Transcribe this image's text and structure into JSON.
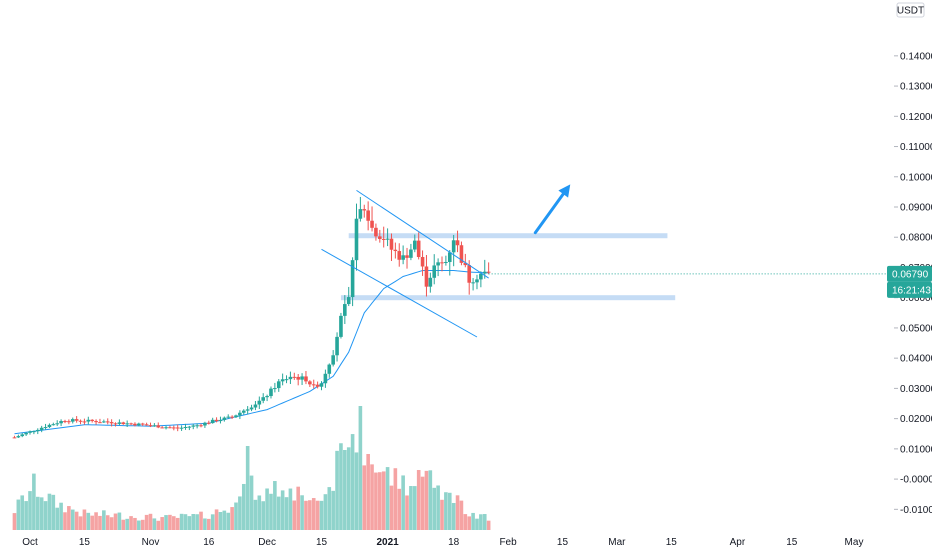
{
  "chart_data": {
    "type": "candlestick",
    "currency": "USDT",
    "y_axis": {
      "ticks": [
        "0.14000",
        "0.13000",
        "0.12000",
        "0.11000",
        "0.10000",
        "0.09000",
        "0.08000",
        "0.07000",
        "0.06000",
        "0.05000",
        "0.04000",
        "0.03000",
        "0.02000",
        "0.01000",
        "-0.00000",
        "-0.01000"
      ],
      "min": -0.0175,
      "max": 0.1545
    },
    "x_axis": {
      "ticks": [
        {
          "label": "Oct",
          "date": "2020-10-01"
        },
        {
          "label": "15",
          "date": "2020-10-15"
        },
        {
          "label": "Nov",
          "date": "2020-11-01"
        },
        {
          "label": "16",
          "date": "2020-11-16"
        },
        {
          "label": "Dec",
          "date": "2020-12-01"
        },
        {
          "label": "15",
          "date": "2020-12-15"
        },
        {
          "label": "2021",
          "date": "2021-01-01",
          "bold": true
        },
        {
          "label": "18",
          "date": "2021-01-18"
        },
        {
          "label": "Feb",
          "date": "2021-02-01"
        },
        {
          "label": "15",
          "date": "2021-02-15"
        },
        {
          "label": "Mar",
          "date": "2021-03-01"
        },
        {
          "label": "15",
          "date": "2021-03-15"
        },
        {
          "label": "Apr",
          "date": "2021-04-01"
        },
        {
          "label": "15",
          "date": "2021-04-15"
        },
        {
          "label": "May",
          "date": "2021-05-01"
        }
      ]
    },
    "last_price": "0.06790",
    "countdown": "16:21:43",
    "colors": {
      "up": "#26a69a",
      "down": "#ef5350",
      "up_volume": "#8fd3cb",
      "down_volume": "#f5a3a3",
      "ma": "#2196f3",
      "trendline": "#2196f3",
      "zone": "#c5dcf5",
      "arrow": "#2196f3"
    },
    "candle_anchors": [
      [
        "2020-09-27",
        0.0138
      ],
      [
        "2020-10-05",
        0.0175
      ],
      [
        "2020-10-10",
        0.0195
      ],
      [
        "2020-10-20",
        0.019
      ],
      [
        "2020-10-30",
        0.018
      ],
      [
        "2020-11-08",
        0.0168
      ],
      [
        "2020-11-13",
        0.0178
      ],
      [
        "2020-11-18",
        0.0195
      ],
      [
        "2020-11-22",
        0.0205
      ],
      [
        "2020-11-26",
        0.0235
      ],
      [
        "2020-11-30",
        0.0265
      ],
      [
        "2020-12-04",
        0.032
      ],
      [
        "2020-12-07",
        0.034
      ],
      [
        "2020-12-11",
        0.033
      ],
      [
        "2020-12-13",
        0.0305
      ],
      [
        "2020-12-15",
        0.032
      ],
      [
        "2020-12-18",
        0.042
      ],
      [
        "2020-12-20",
        0.053
      ],
      [
        "2020-12-22",
        0.06
      ],
      [
        "2020-12-23",
        0.072
      ],
      [
        "2020-12-24",
        0.087
      ],
      [
        "2020-12-26",
        0.09
      ],
      [
        "2020-12-28",
        0.083
      ],
      [
        "2020-12-31",
        0.08
      ],
      [
        "2021-01-02",
        0.076
      ],
      [
        "2021-01-05",
        0.073
      ],
      [
        "2021-01-08",
        0.078
      ],
      [
        "2021-01-11",
        0.065
      ],
      [
        "2021-01-13",
        0.07
      ],
      [
        "2021-01-16",
        0.072
      ],
      [
        "2021-01-18",
        0.08
      ],
      [
        "2021-01-20",
        0.073
      ],
      [
        "2021-01-22",
        0.066
      ],
      [
        "2021-01-25",
        0.068
      ],
      [
        "2021-01-27",
        0.0679
      ]
    ],
    "ma_anchors": [
      [
        "2020-09-27",
        0.015
      ],
      [
        "2020-10-15",
        0.018
      ],
      [
        "2020-11-01",
        0.0175
      ],
      [
        "2020-11-16",
        0.0185
      ],
      [
        "2020-12-01",
        0.023
      ],
      [
        "2020-12-12",
        0.029
      ],
      [
        "2020-12-18",
        0.034
      ],
      [
        "2020-12-22",
        0.042
      ],
      [
        "2020-12-26",
        0.055
      ],
      [
        "2020-12-31",
        0.063
      ],
      [
        "2021-01-05",
        0.067
      ],
      [
        "2021-01-10",
        0.069
      ],
      [
        "2021-01-18",
        0.069
      ],
      [
        "2021-01-22",
        0.0685
      ],
      [
        "2021-01-27",
        0.0682
      ]
    ],
    "volume_anchors": [
      [
        "2020-09-27",
        0.25
      ],
      [
        "2020-10-02",
        0.55
      ],
      [
        "2020-10-07",
        0.35
      ],
      [
        "2020-10-15",
        0.2
      ],
      [
        "2020-10-25",
        0.18
      ],
      [
        "2020-11-05",
        0.15
      ],
      [
        "2020-11-15",
        0.18
      ],
      [
        "2020-11-23",
        0.3
      ],
      [
        "2020-11-26",
        1.05
      ],
      [
        "2020-11-28",
        0.45
      ],
      [
        "2020-12-05",
        0.55
      ],
      [
        "2020-12-15",
        0.35
      ],
      [
        "2020-12-18",
        0.65
      ],
      [
        "2020-12-20",
        0.9
      ],
      [
        "2020-12-23",
        1.3
      ],
      [
        "2020-12-26",
        1.1
      ],
      [
        "2020-12-29",
        0.8
      ],
      [
        "2021-01-02",
        0.65
      ],
      [
        "2021-01-08",
        0.55
      ],
      [
        "2021-01-12",
        0.6
      ],
      [
        "2021-01-18",
        0.4
      ],
      [
        "2021-01-23",
        0.2
      ],
      [
        "2021-01-27",
        0.15
      ]
    ],
    "volume_spikes": [
      [
        "2020-12-25",
        1.55
      ],
      [
        "2020-12-27",
        0.95
      ],
      [
        "2020-12-21",
        1.0
      ],
      [
        "2020-11-26",
        1.05
      ],
      [
        "2021-01-09",
        0.75
      ]
    ],
    "horizontal_zones": [
      {
        "price": 0.0805,
        "from": "2020-12-22",
        "to": "2021-03-14"
      },
      {
        "price": 0.06,
        "from": "2020-12-20",
        "to": "2021-03-16"
      }
    ],
    "channel_lines": [
      {
        "from": [
          "2020-12-24",
          0.0955
        ],
        "to": [
          "2021-01-27",
          0.0665
        ]
      },
      {
        "from": [
          "2020-12-15",
          0.076
        ],
        "to": [
          "2021-01-24",
          0.047
        ]
      }
    ],
    "arrow": {
      "from": [
        "2021-02-08",
        0.0815
      ],
      "to": [
        "2021-02-17",
        0.0975
      ]
    }
  }
}
